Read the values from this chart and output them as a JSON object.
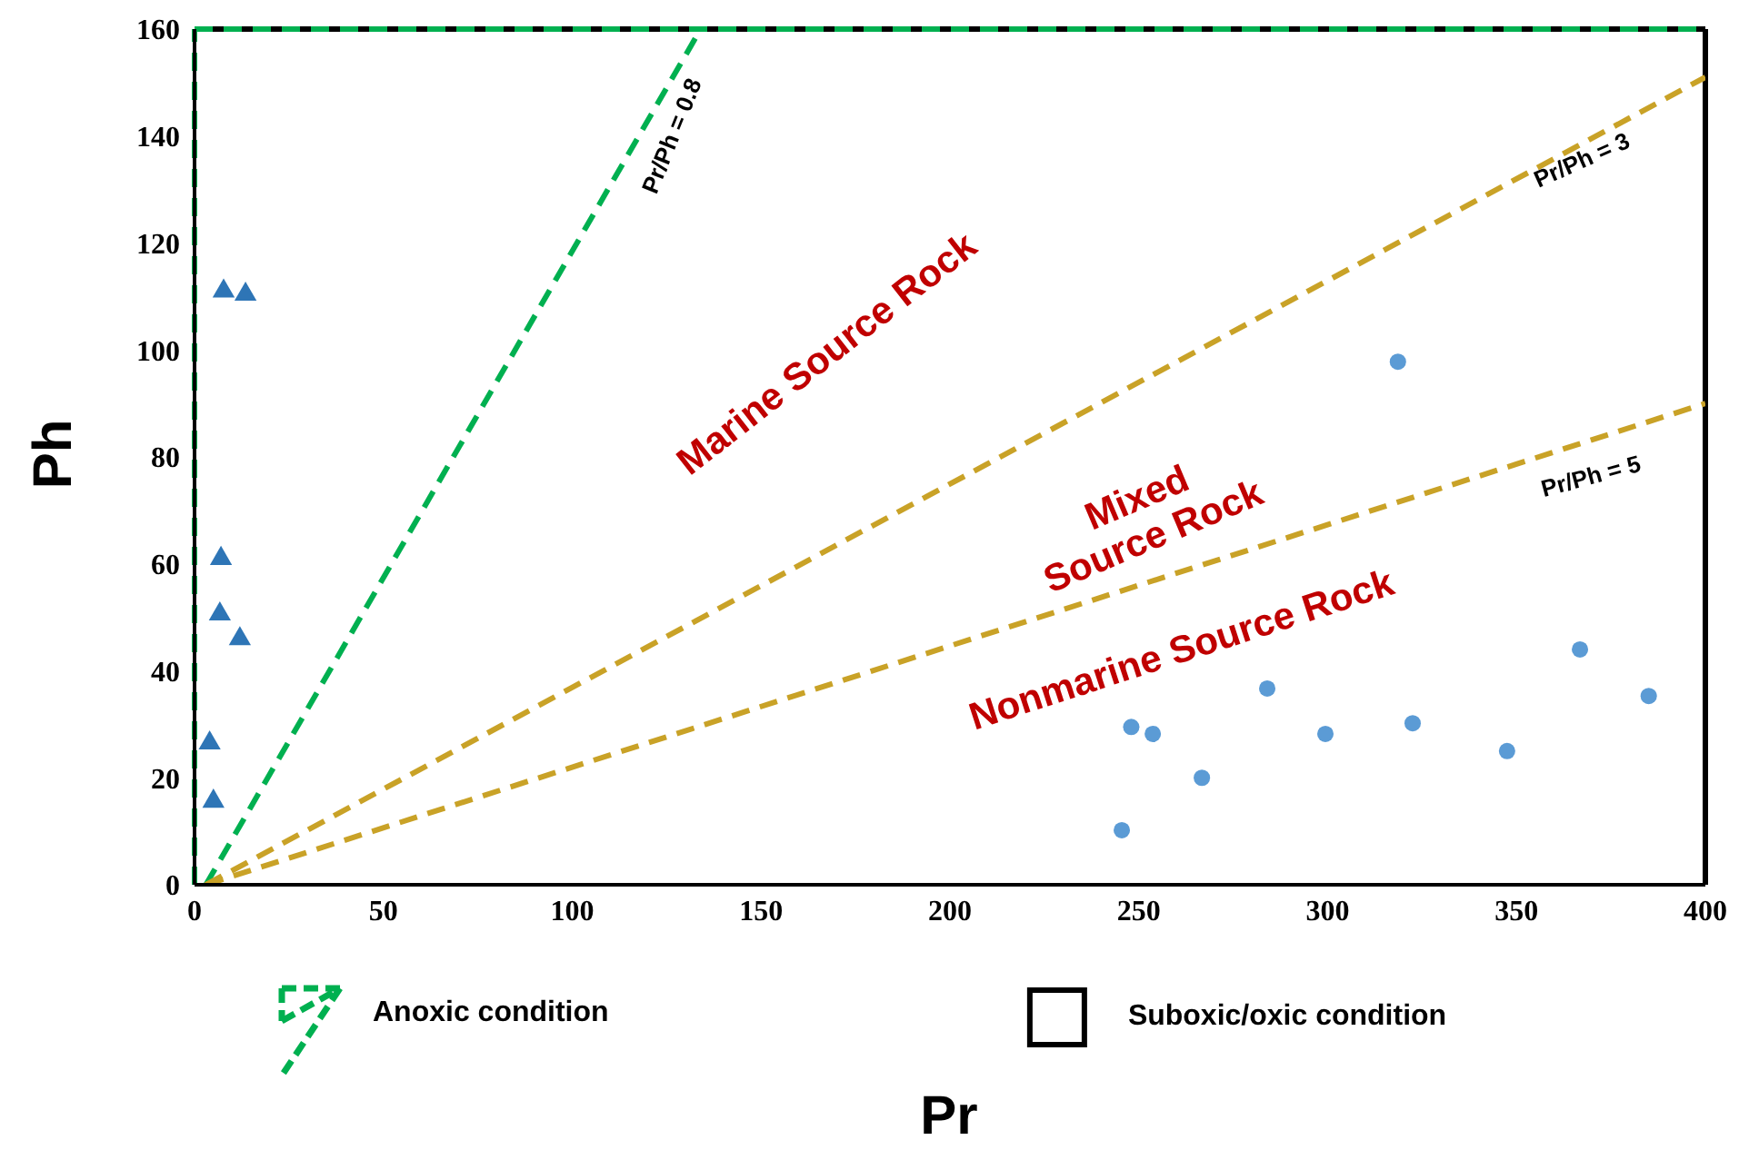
{
  "chart_data": {
    "type": "scatter",
    "xlabel": "Pr",
    "ylabel": "Ph",
    "xlim": [
      0,
      400
    ],
    "ylim": [
      0,
      160
    ],
    "xticks": [
      0,
      50,
      100,
      150,
      200,
      250,
      300,
      350,
      400
    ],
    "yticks": [
      0,
      20,
      40,
      60,
      80,
      100,
      120,
      140,
      160
    ],
    "grid": false,
    "legend": "bottom",
    "series": [
      {
        "name": "Anoxic condition",
        "type": "line",
        "color": "#00b050",
        "line_style": "dashed",
        "marker": "none",
        "x": [
          3,
          134
        ],
        "values": [
          0,
          160
        ]
      },
      {
        "name": "Pr/Ph = 3",
        "type": "line",
        "color": "#c9a227",
        "line_style": "dashed",
        "marker": "none",
        "x": [
          3,
          400
        ],
        "values": [
          0,
          151
        ]
      },
      {
        "name": "Pr/Ph = 5",
        "type": "line",
        "color": "#c9a227",
        "line_style": "dashed",
        "marker": "none",
        "x": [
          3,
          400
        ],
        "values": [
          0,
          90
        ]
      },
      {
        "color": "#2e75b6",
        "marker": "triangle",
        "x": [
          7.7,
          13.5,
          7,
          6.7,
          12,
          4,
          5
        ],
        "values": [
          111,
          110.4,
          61,
          50.6,
          46,
          26.5,
          15.6
        ]
      },
      {
        "color": "#5b9bd5",
        "marker": "circle",
        "x": [
          245.5,
          248,
          253.7,
          266.7,
          284,
          299.4,
          322.5,
          318.6,
          347.5,
          366.8,
          385
        ],
        "values": [
          10.2,
          29.5,
          28.2,
          20,
          36.7,
          28.2,
          30.2,
          97.8,
          25,
          44,
          35.3
        ]
      }
    ],
    "ref_lines": [
      {
        "axis": "y",
        "value": 160,
        "color": "#000000",
        "line_style": "solid"
      },
      {
        "axis": "x",
        "value": 400,
        "color": "#000000",
        "line_style": "solid"
      },
      {
        "axis": "x",
        "value": 0,
        "color": "#00b050",
        "line_style": "dashed"
      },
      {
        "axis": "y",
        "value": 160,
        "color": "#00b050",
        "line_style": "dashed"
      }
    ],
    "annotations": [
      "Pr/Ph = 0.8",
      "Marine Source Rock",
      "Mixed\nSource Rock",
      "Nonmarine Source Rock",
      "Suboxic/oxic condition"
    ]
  }
}
